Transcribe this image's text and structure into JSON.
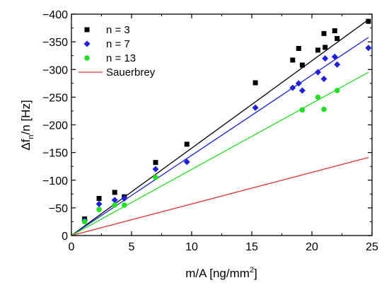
{
  "chart_data": {
    "type": "scatter",
    "xlabel": {
      "base": "m/A [ng/mm",
      "sup": "2",
      "tail": "]"
    },
    "ylabel": {
      "pre": "Δf",
      "sub": "n",
      "post": "/n [Hz]"
    },
    "xlim": [
      0,
      25
    ],
    "ylim": [
      0,
      -400
    ],
    "xticks": [
      0,
      5,
      10,
      15,
      20,
      25
    ],
    "yticks": [
      0,
      -50,
      -100,
      -150,
      -200,
      -250,
      -300,
      -350,
      -400
    ],
    "xtick_labels": [
      "0",
      "5",
      "10",
      "15",
      "20",
      "25"
    ],
    "ytick_labels": [
      "0",
      "−50",
      "−100",
      "−150",
      "−200",
      "−250",
      "−300",
      "−350",
      "−400"
    ],
    "grid": false,
    "legend_position": "top-left",
    "series": [
      {
        "name": "n = 3",
        "marker": "square",
        "color": "#000000",
        "points": [
          [
            1.1,
            -30
          ],
          [
            2.3,
            -67
          ],
          [
            3.6,
            -78
          ],
          [
            4.4,
            -70
          ],
          [
            7.0,
            -132
          ],
          [
            9.6,
            -165
          ],
          [
            15.3,
            -276
          ],
          [
            18.4,
            -317
          ],
          [
            18.9,
            -338
          ],
          [
            19.2,
            -308
          ],
          [
            20.5,
            -335
          ],
          [
            21.0,
            -365
          ],
          [
            21.1,
            -340
          ],
          [
            21.9,
            -370
          ],
          [
            22.1,
            -356
          ],
          [
            24.7,
            -387
          ]
        ],
        "fit_line": [
          [
            0,
            0
          ],
          [
            24.7,
            -390
          ]
        ]
      },
      {
        "name": "n = 7",
        "marker": "diamond",
        "color": "#1f1fe0",
        "points": [
          [
            1.1,
            -27
          ],
          [
            2.3,
            -57
          ],
          [
            3.6,
            -64
          ],
          [
            4.4,
            -67
          ],
          [
            7.0,
            -120
          ],
          [
            9.6,
            -133
          ],
          [
            15.3,
            -231
          ],
          [
            18.4,
            -267
          ],
          [
            18.9,
            -275
          ],
          [
            19.2,
            -262
          ],
          [
            20.5,
            -295
          ],
          [
            21.0,
            -283
          ],
          [
            21.1,
            -320
          ],
          [
            21.9,
            -323
          ],
          [
            22.1,
            -309
          ],
          [
            24.7,
            -339
          ]
        ],
        "fit_line": [
          [
            0,
            0
          ],
          [
            24.7,
            -358
          ]
        ]
      },
      {
        "name": "n = 13",
        "marker": "circle",
        "color": "#22e022",
        "points": [
          [
            1.1,
            -25
          ],
          [
            2.3,
            -47
          ],
          [
            3.6,
            -55
          ],
          [
            4.4,
            -55
          ],
          [
            7.0,
            -105
          ],
          [
            19.2,
            -227
          ],
          [
            20.5,
            -250
          ],
          [
            21.0,
            -228
          ],
          [
            22.1,
            -262
          ]
        ],
        "fit_line": [
          [
            0,
            0
          ],
          [
            24.7,
            -295
          ]
        ]
      },
      {
        "name": "Sauerbrey",
        "marker": "none",
        "color": "#e83030",
        "fit_line": [
          [
            0,
            0
          ],
          [
            24.7,
            -141
          ]
        ]
      }
    ]
  }
}
